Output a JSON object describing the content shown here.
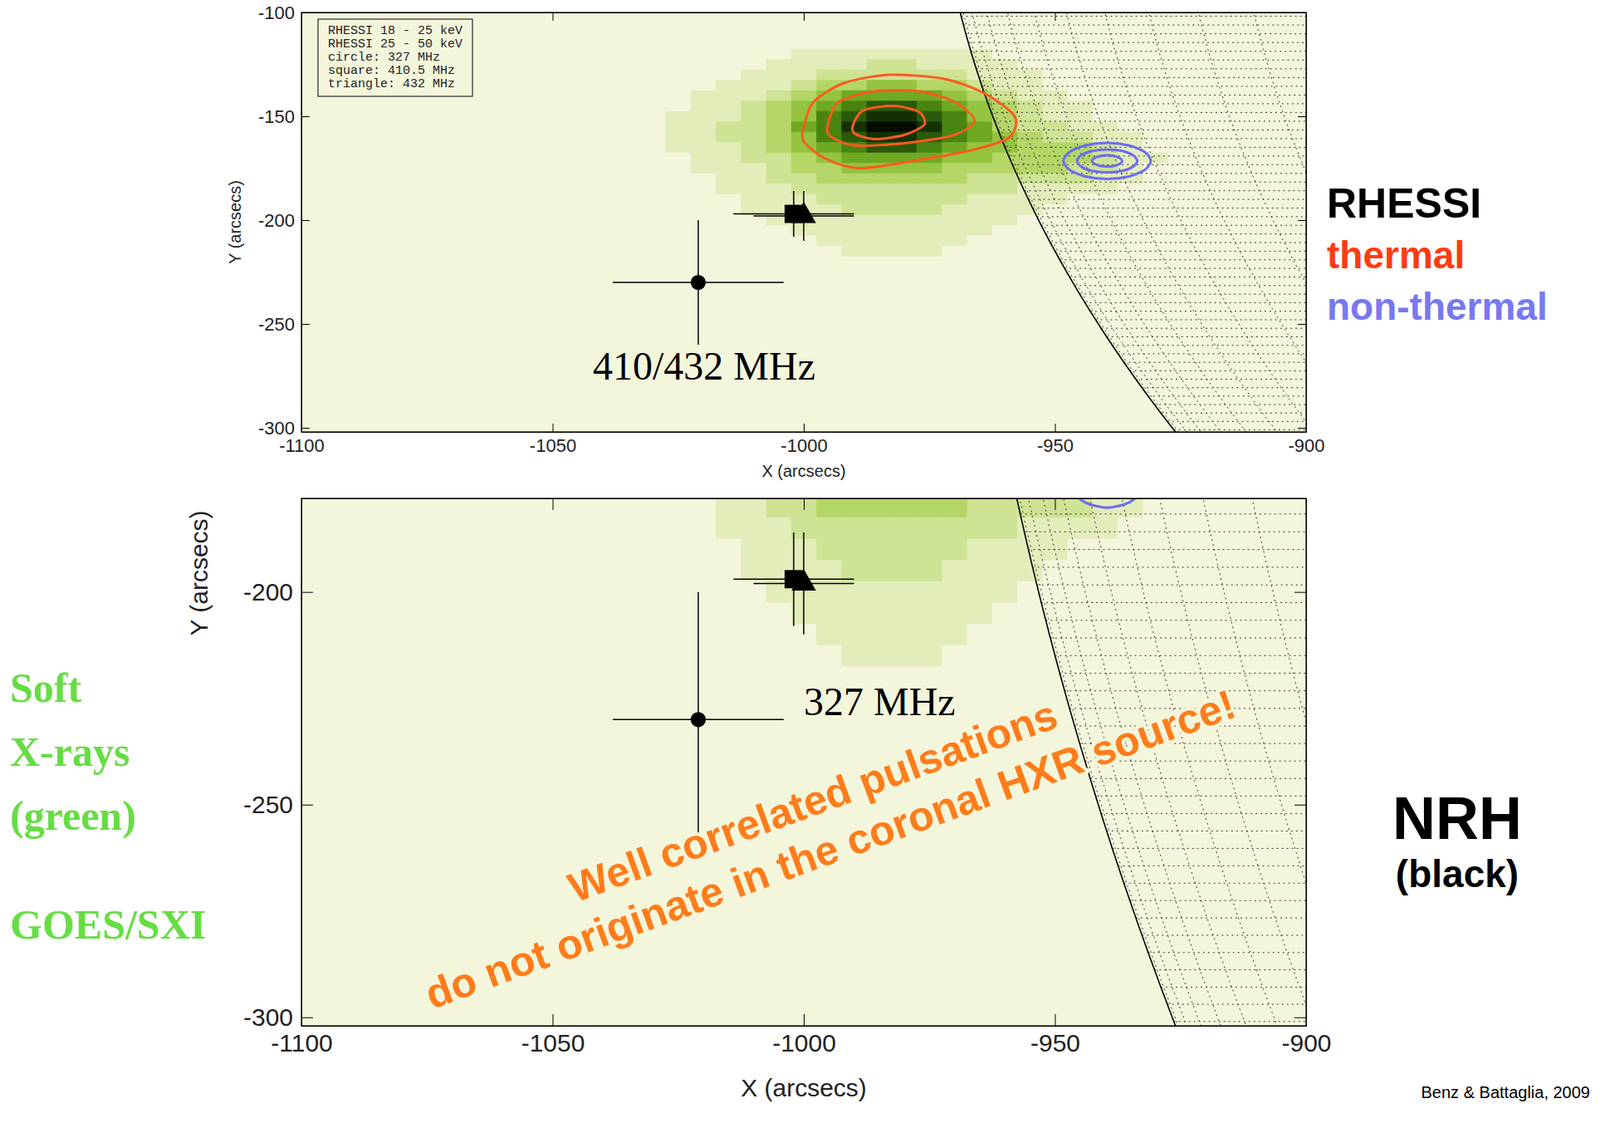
{
  "chart_data": {
    "type": "image",
    "xlim": [
      -1100,
      -900
    ],
    "xticks": [
      -1100,
      -1050,
      -1000,
      -950,
      -900
    ],
    "x_label": "X (arcsecs)",
    "y_label": "Y (arcsecs)",
    "limb_radius": 974,
    "image": {
      "x": [
        -1035,
        -1030,
        -1025,
        -1020,
        -1015,
        -1010,
        -1005,
        -1000,
        -995,
        -990,
        -985,
        -980,
        -975,
        -970,
        -965,
        -960,
        -955,
        -950,
        -945,
        -940,
        -935,
        -930,
        -925
      ],
      "y": [
        -120,
        -125,
        -130,
        -135,
        -140,
        -145,
        -150,
        -155,
        -160,
        -165,
        -170,
        -175,
        -180,
        -185,
        -190,
        -195,
        -200,
        -205,
        -210,
        -215,
        -220
      ],
      "zlim": [
        0,
        9
      ],
      "values": [
        [
          0,
          0,
          0,
          0,
          0,
          0,
          0,
          1,
          1,
          1,
          1,
          1,
          1,
          1,
          1,
          0,
          0,
          0,
          0,
          0,
          0,
          0,
          0
        ],
        [
          0,
          0,
          0,
          0,
          0,
          0,
          1,
          1,
          1,
          1,
          2,
          2,
          1,
          1,
          1,
          1,
          0,
          0,
          0,
          0,
          0,
          0,
          0
        ],
        [
          0,
          0,
          0,
          0,
          0,
          1,
          1,
          1,
          2,
          2,
          2,
          2,
          2,
          2,
          1,
          1,
          1,
          0,
          0,
          0,
          0,
          0,
          0
        ],
        [
          0,
          0,
          0,
          0,
          1,
          1,
          1,
          2,
          3,
          3,
          4,
          4,
          3,
          3,
          2,
          1,
          1,
          0,
          0,
          0,
          0,
          0,
          0
        ],
        [
          0,
          0,
          0,
          1,
          1,
          1,
          2,
          3,
          4,
          5,
          5,
          5,
          5,
          4,
          3,
          2,
          1,
          1,
          0,
          0,
          0,
          0,
          0
        ],
        [
          0,
          0,
          0,
          1,
          1,
          2,
          3,
          4,
          5,
          6,
          7,
          7,
          6,
          5,
          4,
          3,
          2,
          1,
          1,
          0,
          0,
          0,
          0
        ],
        [
          0,
          0,
          1,
          1,
          1,
          2,
          3,
          4,
          6,
          7,
          8,
          8,
          7,
          6,
          4,
          3,
          2,
          1,
          1,
          0,
          0,
          0,
          0
        ],
        [
          0,
          0,
          1,
          1,
          2,
          2,
          3,
          5,
          6,
          8,
          9,
          9,
          8,
          6,
          5,
          3,
          2,
          2,
          1,
          1,
          0,
          0,
          0
        ],
        [
          0,
          0,
          1,
          1,
          2,
          2,
          3,
          4,
          6,
          7,
          8,
          8,
          7,
          6,
          5,
          4,
          3,
          2,
          2,
          1,
          1,
          0,
          0
        ],
        [
          0,
          0,
          1,
          1,
          1,
          2,
          3,
          4,
          5,
          6,
          7,
          7,
          6,
          5,
          4,
          4,
          3,
          3,
          3,
          2,
          1,
          0,
          0
        ],
        [
          0,
          0,
          0,
          1,
          1,
          2,
          2,
          3,
          4,
          5,
          5,
          5,
          5,
          4,
          4,
          3,
          3,
          3,
          3,
          2,
          1,
          1,
          0
        ],
        [
          0,
          0,
          0,
          1,
          1,
          1,
          2,
          3,
          3,
          4,
          4,
          4,
          4,
          3,
          3,
          3,
          3,
          3,
          2,
          2,
          1,
          0,
          0
        ],
        [
          0,
          0,
          0,
          0,
          1,
          1,
          2,
          2,
          3,
          3,
          3,
          3,
          3,
          3,
          2,
          2,
          2,
          2,
          2,
          1,
          1,
          0,
          0
        ],
        [
          0,
          0,
          0,
          0,
          1,
          1,
          1,
          2,
          2,
          2,
          2,
          2,
          2,
          2,
          2,
          2,
          1,
          1,
          1,
          1,
          0,
          0,
          0
        ],
        [
          0,
          0,
          0,
          0,
          0,
          1,
          1,
          1,
          2,
          2,
          2,
          2,
          2,
          2,
          1,
          1,
          1,
          1,
          0,
          0,
          0,
          0,
          0
        ],
        [
          0,
          0,
          0,
          0,
          0,
          1,
          1,
          1,
          1,
          2,
          2,
          2,
          2,
          1,
          1,
          1,
          1,
          0,
          0,
          0,
          0,
          0,
          0
        ],
        [
          0,
          0,
          0,
          0,
          0,
          0,
          1,
          1,
          1,
          1,
          1,
          1,
          1,
          1,
          1,
          1,
          0,
          0,
          0,
          0,
          0,
          0,
          0
        ],
        [
          0,
          0,
          0,
          0,
          0,
          0,
          0,
          1,
          1,
          1,
          1,
          1,
          1,
          1,
          1,
          0,
          0,
          0,
          0,
          0,
          0,
          0,
          0
        ],
        [
          0,
          0,
          0,
          0,
          0,
          0,
          0,
          0,
          1,
          1,
          1,
          1,
          1,
          1,
          0,
          0,
          0,
          0,
          0,
          0,
          0,
          0,
          0
        ],
        [
          0,
          0,
          0,
          0,
          0,
          0,
          0,
          0,
          0,
          1,
          1,
          1,
          1,
          0,
          0,
          0,
          0,
          0,
          0,
          0,
          0,
          0,
          0
        ],
        [
          0,
          0,
          0,
          0,
          0,
          0,
          0,
          0,
          0,
          0,
          0,
          0,
          0,
          0,
          0,
          0,
          0,
          0,
          0,
          0,
          0,
          0,
          0
        ]
      ]
    },
    "series": [
      {
        "name": "RHESSI 18 - 25 keV",
        "type": "contour",
        "color": "#ff5a1e",
        "contours": [
          {
            "x": [
              -1000,
              -998,
              -992,
              -983,
              -972,
              -964,
              -958,
              -959,
              -966,
              -977,
              -989,
              -996,
              -1000
            ],
            "y": [
              -155,
              -143,
              -134,
              -130,
              -132,
              -139,
              -150,
              -160,
              -166,
              -171,
              -175,
              -170,
              -162
            ]
          },
          {
            "x": [
              -995,
              -993,
              -986,
              -977,
              -970,
              -966,
              -970,
              -980,
              -990,
              -995
            ],
            "y": [
              -152,
              -143,
              -138,
              -138,
              -143,
              -152,
              -159,
              -163,
              -164,
              -159
            ]
          },
          {
            "x": [
              -990,
              -988,
              -982,
              -977,
              -976,
              -980,
              -986,
              -990
            ],
            "y": [
              -153,
              -147,
              -145,
              -148,
              -154,
              -159,
              -161,
              -158
            ]
          }
        ]
      },
      {
        "name": "RHESSI 25 - 50 keV",
        "type": "contour",
        "color": "#6b6bf5",
        "contours": [
          {
            "x": [
              -930.9,
              -932.1,
              -935.3,
              -939.6,
              -943.9,
              -947.1,
              -948.3,
              -947.1,
              -943.9,
              -939.6,
              -935.3,
              -932.1
            ],
            "y": [
              -171.5,
              -167.2,
              -164.0,
              -162.8,
              -164.0,
              -167.2,
              -171.5,
              -175.8,
              -179.0,
              -180.2,
              -179.0,
              -175.8
            ]
          },
          {
            "x": [
              -933.6,
              -934.4,
              -936.6,
              -939.6,
              -942.6,
              -944.8,
              -945.6,
              -944.8,
              -942.6,
              -939.6,
              -936.6,
              -934.4
            ],
            "y": [
              -171.5,
              -168.8,
              -166.7,
              -166.0,
              -166.7,
              -168.8,
              -171.5,
              -174.2,
              -176.3,
              -177.0,
              -176.3,
              -174.2
            ]
          },
          {
            "x": [
              -936.6,
              -937.0,
              -938.1,
              -939.6,
              -941.1,
              -942.2,
              -942.6,
              -942.2,
              -941.1,
              -939.6,
              -938.1,
              -937.0
            ],
            "y": [
              -171.5,
              -170.2,
              -169.2,
              -168.8,
              -169.2,
              -170.2,
              -171.5,
              -172.8,
              -173.8,
              -174.2,
              -173.8,
              -172.8
            ]
          }
        ]
      },
      {
        "name": "circle: 327 MHz",
        "type": "scatter",
        "marker": "circle",
        "color": "#000000",
        "x": [
          -1021
        ],
        "values": [
          -230
        ],
        "xerr": [
          17
        ],
        "yerr": [
          30
        ]
      },
      {
        "name": "square: 410.5 MHz",
        "type": "scatter",
        "marker": "square",
        "color": "#000000",
        "x": [
          -1002
        ],
        "values": [
          -197
        ],
        "xerr": [
          12
        ],
        "yerr": [
          11
        ]
      },
      {
        "name": "triangle: 432 MHz",
        "type": "scatter",
        "marker": "triangle",
        "color": "#000000",
        "x": [
          -1000
        ],
        "values": [
          -198
        ],
        "xerr": [
          10
        ],
        "yerr": [
          12
        ]
      }
    ],
    "panels": [
      {
        "title": "410/432 MHz",
        "ylim": [
          -100,
          -302
        ],
        "yticks": [
          -100,
          -150,
          -200,
          -250,
          -300
        ],
        "legend": "upper left"
      },
      {
        "title": "327 MHz",
        "ylim": [
          -178,
          -302
        ],
        "yticks": [
          -200,
          -250,
          -300
        ]
      }
    ],
    "annotations": [
      {
        "text": "RHESSI",
        "color": "#000000"
      },
      {
        "text": "thermal",
        "color": "#ff3b0f"
      },
      {
        "text": "non-thermal",
        "color": "#7878f0"
      },
      {
        "text": "Soft X-rays (green)",
        "color": "#66dd44"
      },
      {
        "text": "GOES/SXI",
        "color": "#66dd44"
      },
      {
        "text": "NRH",
        "color": "#000000"
      },
      {
        "text": "(black)",
        "color": "#000000"
      },
      {
        "text": "Benz & Battaglia, 2009",
        "color": "#000000"
      }
    ],
    "callout": {
      "lines": [
        "Well correlated pulsations",
        "do not originate in the coronal HXR source!"
      ],
      "color": "#ff7c1a"
    }
  }
}
